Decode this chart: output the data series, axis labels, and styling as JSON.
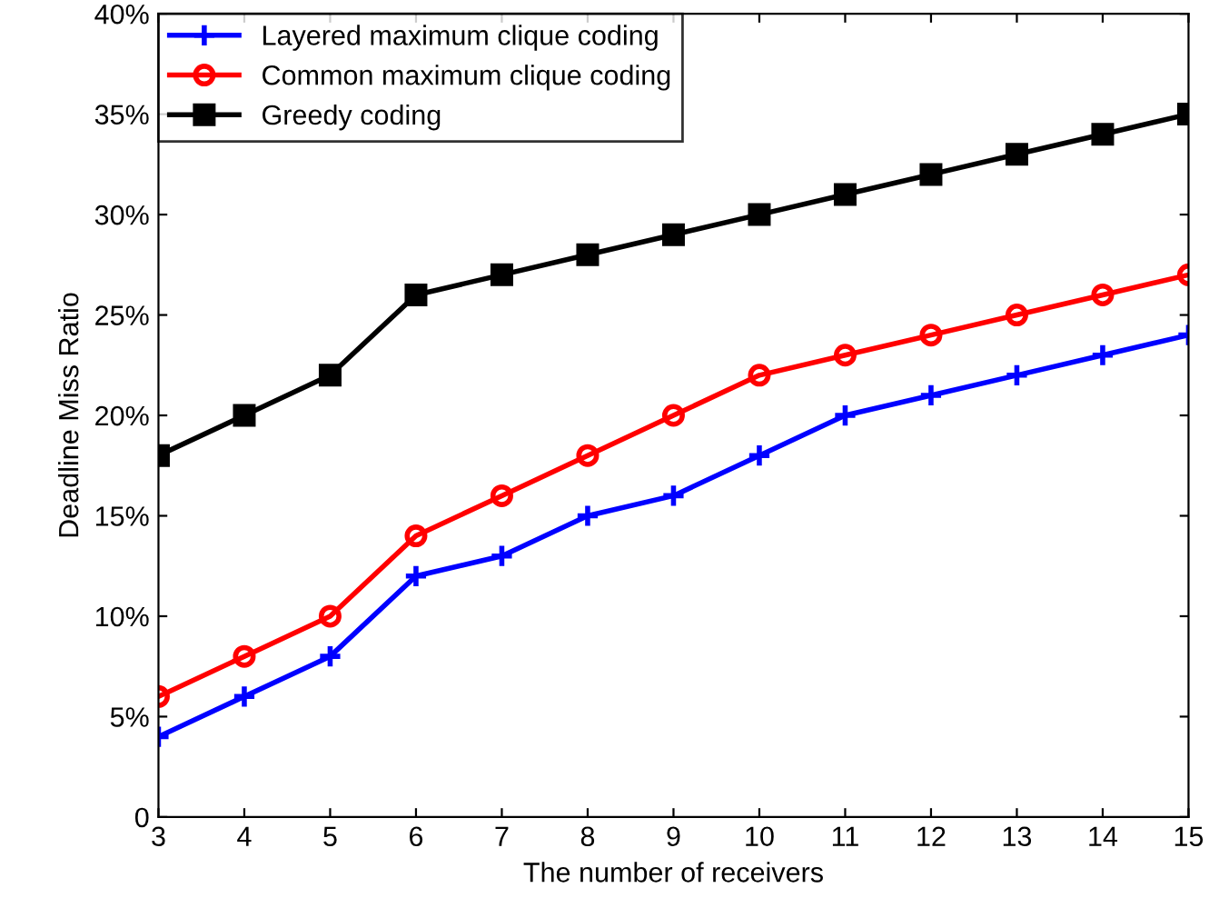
{
  "chart_data": {
    "type": "line",
    "xlabel": "The number of receivers",
    "ylabel": "Deadline Miss Ratio",
    "x": [
      3,
      4,
      5,
      6,
      7,
      8,
      9,
      10,
      11,
      12,
      13,
      14,
      15
    ],
    "series": [
      {
        "name": "Layered maximum clique coding",
        "color": "#0000ff",
        "marker": "cross",
        "values": [
          4,
          6,
          8,
          12,
          13,
          15,
          16,
          18,
          20,
          21,
          22,
          23,
          24
        ]
      },
      {
        "name": "Common maximum clique coding",
        "color": "#ff0000",
        "marker": "circle",
        "values": [
          6,
          8,
          10,
          14,
          16,
          18,
          20,
          22,
          23,
          24,
          25,
          26,
          27
        ]
      },
      {
        "name": "Greedy coding",
        "color": "#000000",
        "marker": "square",
        "values": [
          18,
          20,
          22,
          26,
          27,
          28,
          29,
          30,
          31,
          32,
          33,
          34,
          35
        ]
      }
    ],
    "xlim": [
      3,
      15
    ],
    "xticks": [
      3,
      4,
      5,
      6,
      7,
      8,
      9,
      10,
      11,
      12,
      13,
      14,
      15
    ],
    "ylim": [
      0,
      40
    ],
    "yticks": [
      0,
      {
        "value": 5,
        "label": "5%"
      },
      {
        "value": 10,
        "label": "10%"
      },
      {
        "value": 15,
        "label": "15%"
      },
      {
        "value": 20,
        "label": "20%"
      },
      {
        "value": 25,
        "label": "25%"
      },
      {
        "value": 30,
        "label": "30%"
      },
      {
        "value": 35,
        "label": "35%"
      },
      {
        "value": 40,
        "label": "40%"
      }
    ],
    "grid": false,
    "legend": "top left",
    "line_style": "solid"
  }
}
